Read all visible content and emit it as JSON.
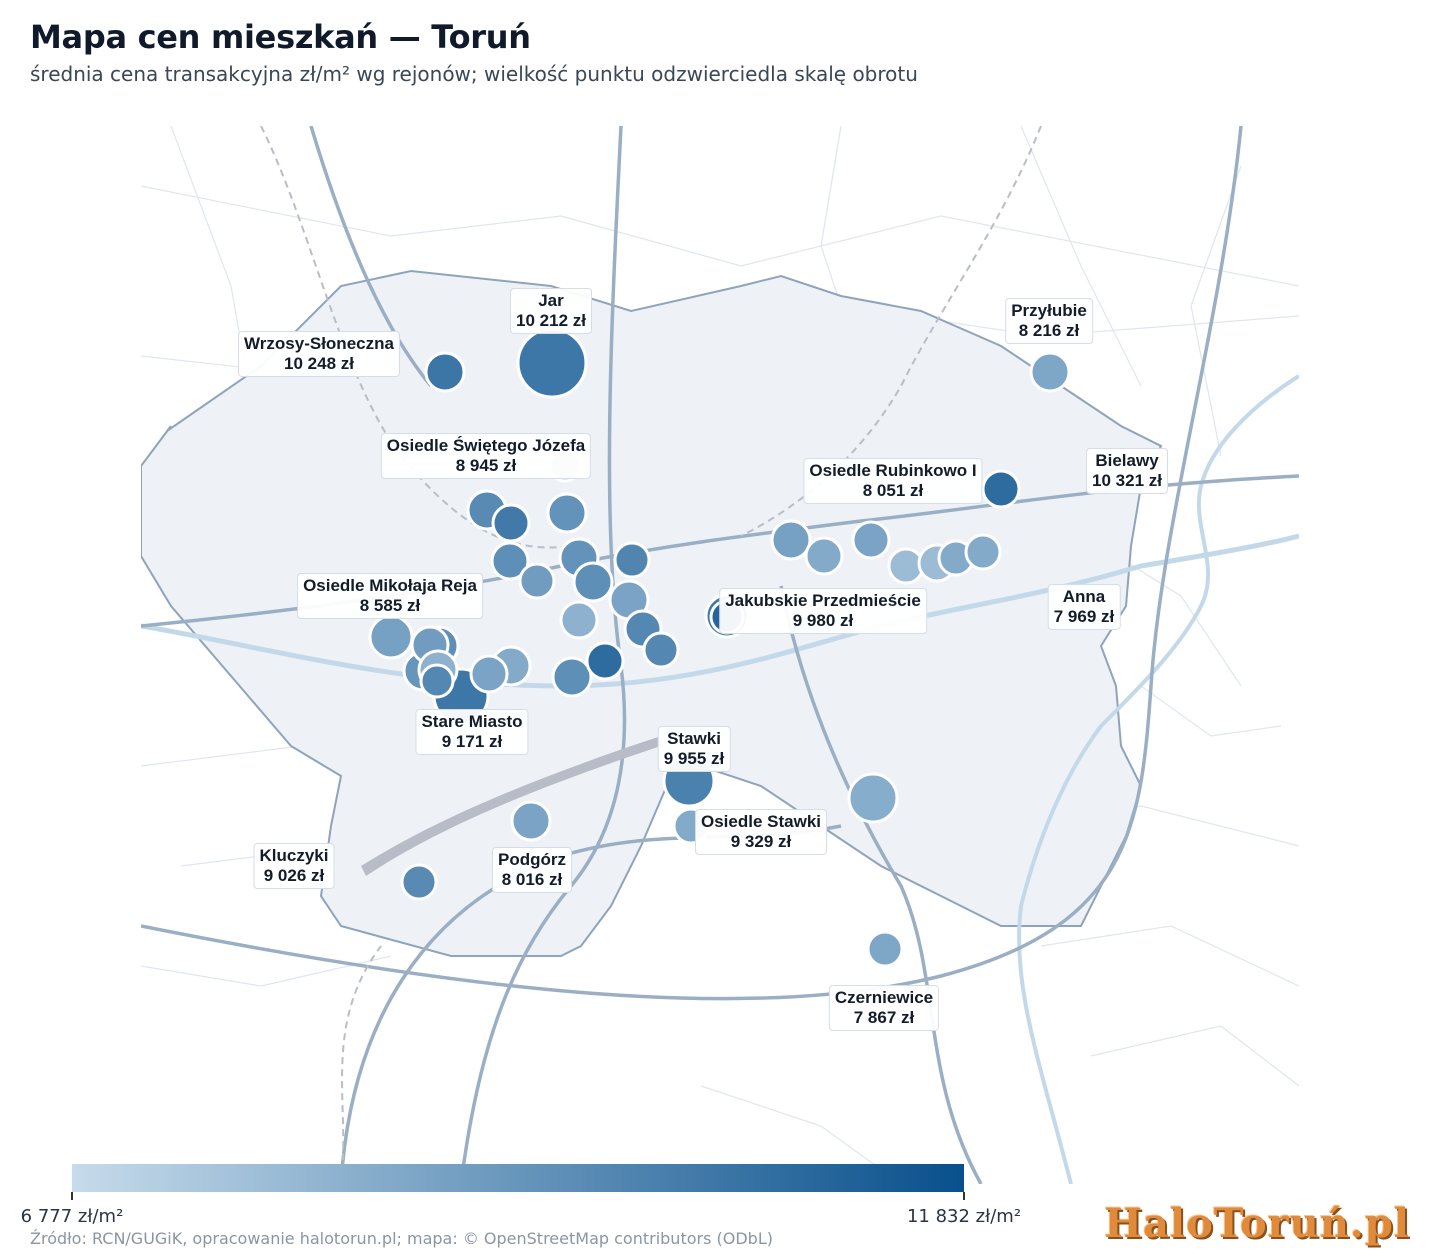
{
  "title": "Mapa cen mieszkań — Toruń",
  "subtitle": "średnia cena transakcyjna zł/m² wg rejonów; wielkość punktu odzwierciedla skalę obrotu",
  "source": "Źródło: RCN/GUGiK, opracowanie halotorun.pl; mapa: © OpenStreetMap contributors (ODbL)",
  "logo": "HaloToruń.pl",
  "scale": {
    "min_value": 6777,
    "max_value": 11832,
    "min_label": "6 777 zł/m²",
    "max_label": "11 832 zł/m²",
    "color_min": "#c6dbeb",
    "color_max": "#08508c"
  },
  "districts": [
    {
      "name": "Jar",
      "price": "10 212 zł"
    },
    {
      "name": "Wrzosy-Słoneczna",
      "price": "10 248 zł"
    },
    {
      "name": "Przyłubie",
      "price": "8 216 zł"
    },
    {
      "name": "Osiedle Świętego Józefa",
      "price": "8 945 zł"
    },
    {
      "name": "Osiedle Rubinkowo I",
      "price": "8 051 zł"
    },
    {
      "name": "Bielawy",
      "price": "10 321 zł"
    },
    {
      "name": "Osiedle Mikołaja Reja",
      "price": "8 585 zł"
    },
    {
      "name": "Jakubskie Przedmieście",
      "price": "9 980 zł"
    },
    {
      "name": "Anna",
      "price": "7 969 zł"
    },
    {
      "name": "Stare Miasto",
      "price": "9 171 zł"
    },
    {
      "name": "Stawki",
      "price": "9 955 zł"
    },
    {
      "name": "Osiedle Stawki",
      "price": "9 329 zł"
    },
    {
      "name": "Kluczyki",
      "price": "9 026 zł"
    },
    {
      "name": "Podgórz",
      "price": "8 016 zł"
    },
    {
      "name": "Czerniewice",
      "price": "7 867 zł"
    }
  ]
}
